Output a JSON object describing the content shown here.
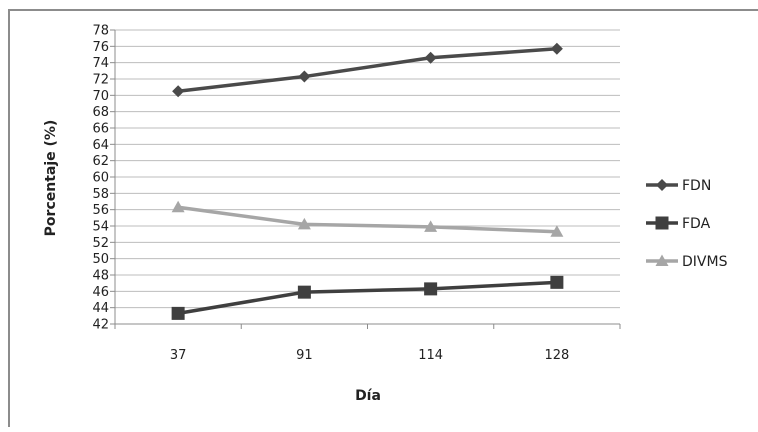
{
  "chart_data": {
    "type": "line",
    "xlabel": "Día",
    "ylabel": "Porcentaje (%)",
    "categories": [
      "37",
      "91",
      "114",
      "128"
    ],
    "ylim": [
      42,
      78
    ],
    "ytick_step": 2,
    "grid": true,
    "legend_position": "right",
    "series": [
      {
        "name": "FDN",
        "values": [
          70.5,
          72.3,
          74.6,
          75.7
        ],
        "color": "#4a4a4a",
        "marker": "diamond"
      },
      {
        "name": "FDA",
        "values": [
          43.3,
          45.9,
          46.3,
          47.1
        ],
        "color": "#3f3f3f",
        "marker": "square"
      },
      {
        "name": "DIVMS",
        "values": [
          56.3,
          54.2,
          53.9,
          53.3
        ],
        "color": "#a6a6a6",
        "marker": "triangle"
      }
    ]
  }
}
